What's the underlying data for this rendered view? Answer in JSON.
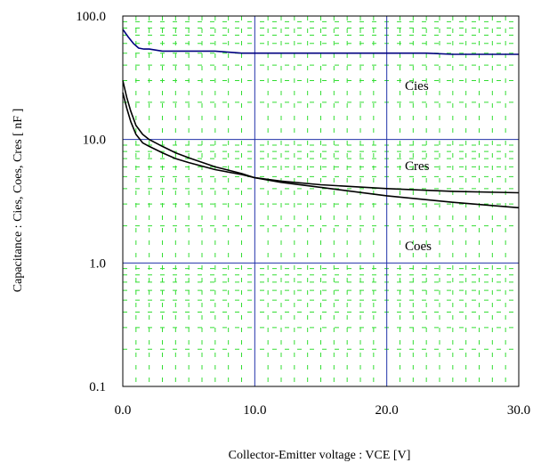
{
  "chart_data": {
    "type": "line",
    "title": "",
    "xlabel": "Collector-Emitter voltage : VCE [V]",
    "ylabel": "Capacitance  :  Cies, Coes, Cres  [ nF ]",
    "xlim": [
      0,
      30
    ],
    "ylim": [
      0.1,
      100
    ],
    "yscale": "log",
    "x_ticks": [
      "0.0",
      "10.0",
      "20.0",
      "30.0"
    ],
    "y_ticks": [
      "0.1",
      "1.0",
      "10.0",
      "100.0"
    ],
    "grid": true,
    "series": [
      {
        "name": "Cies",
        "color": "#00007f",
        "x": [
          0.0,
          0.4,
          0.8,
          1.2,
          1.6,
          2.0,
          3.0,
          5.0,
          7.0,
          8.0,
          9.0,
          10.0,
          15.0,
          20.0,
          23.0,
          25.0,
          30.0
        ],
        "y": [
          78,
          68,
          60,
          55,
          54,
          54,
          52,
          52,
          52,
          51,
          50,
          50,
          50,
          50,
          50,
          49,
          49
        ]
      },
      {
        "name": "Cres",
        "color": "#000000",
        "x": [
          0.0,
          0.3,
          0.6,
          1.0,
          1.5,
          2.0,
          3.0,
          4.0,
          5.0,
          7.0,
          9.0,
          10.0,
          12.0,
          15.0,
          20.0,
          25.0,
          30.0
        ],
        "y": [
          30,
          22,
          17,
          13,
          11,
          10,
          8.8,
          7.8,
          7.1,
          6.0,
          5.3,
          4.9,
          4.6,
          4.3,
          4.0,
          3.8,
          3.7
        ]
      },
      {
        "name": "Coes",
        "color": "#000000",
        "x": [
          0.0,
          0.3,
          0.6,
          1.0,
          1.5,
          2.0,
          3.0,
          4.0,
          5.0,
          7.0,
          9.0,
          10.0,
          12.0,
          15.0,
          20.0,
          25.0,
          30.0
        ],
        "y": [
          24,
          18,
          14,
          11,
          9.4,
          8.8,
          7.8,
          7.0,
          6.5,
          5.7,
          5.2,
          4.9,
          4.5,
          4.1,
          3.5,
          3.1,
          2.8
        ]
      }
    ],
    "annotations": [
      "Cies",
      "Cres",
      "Coes"
    ]
  }
}
